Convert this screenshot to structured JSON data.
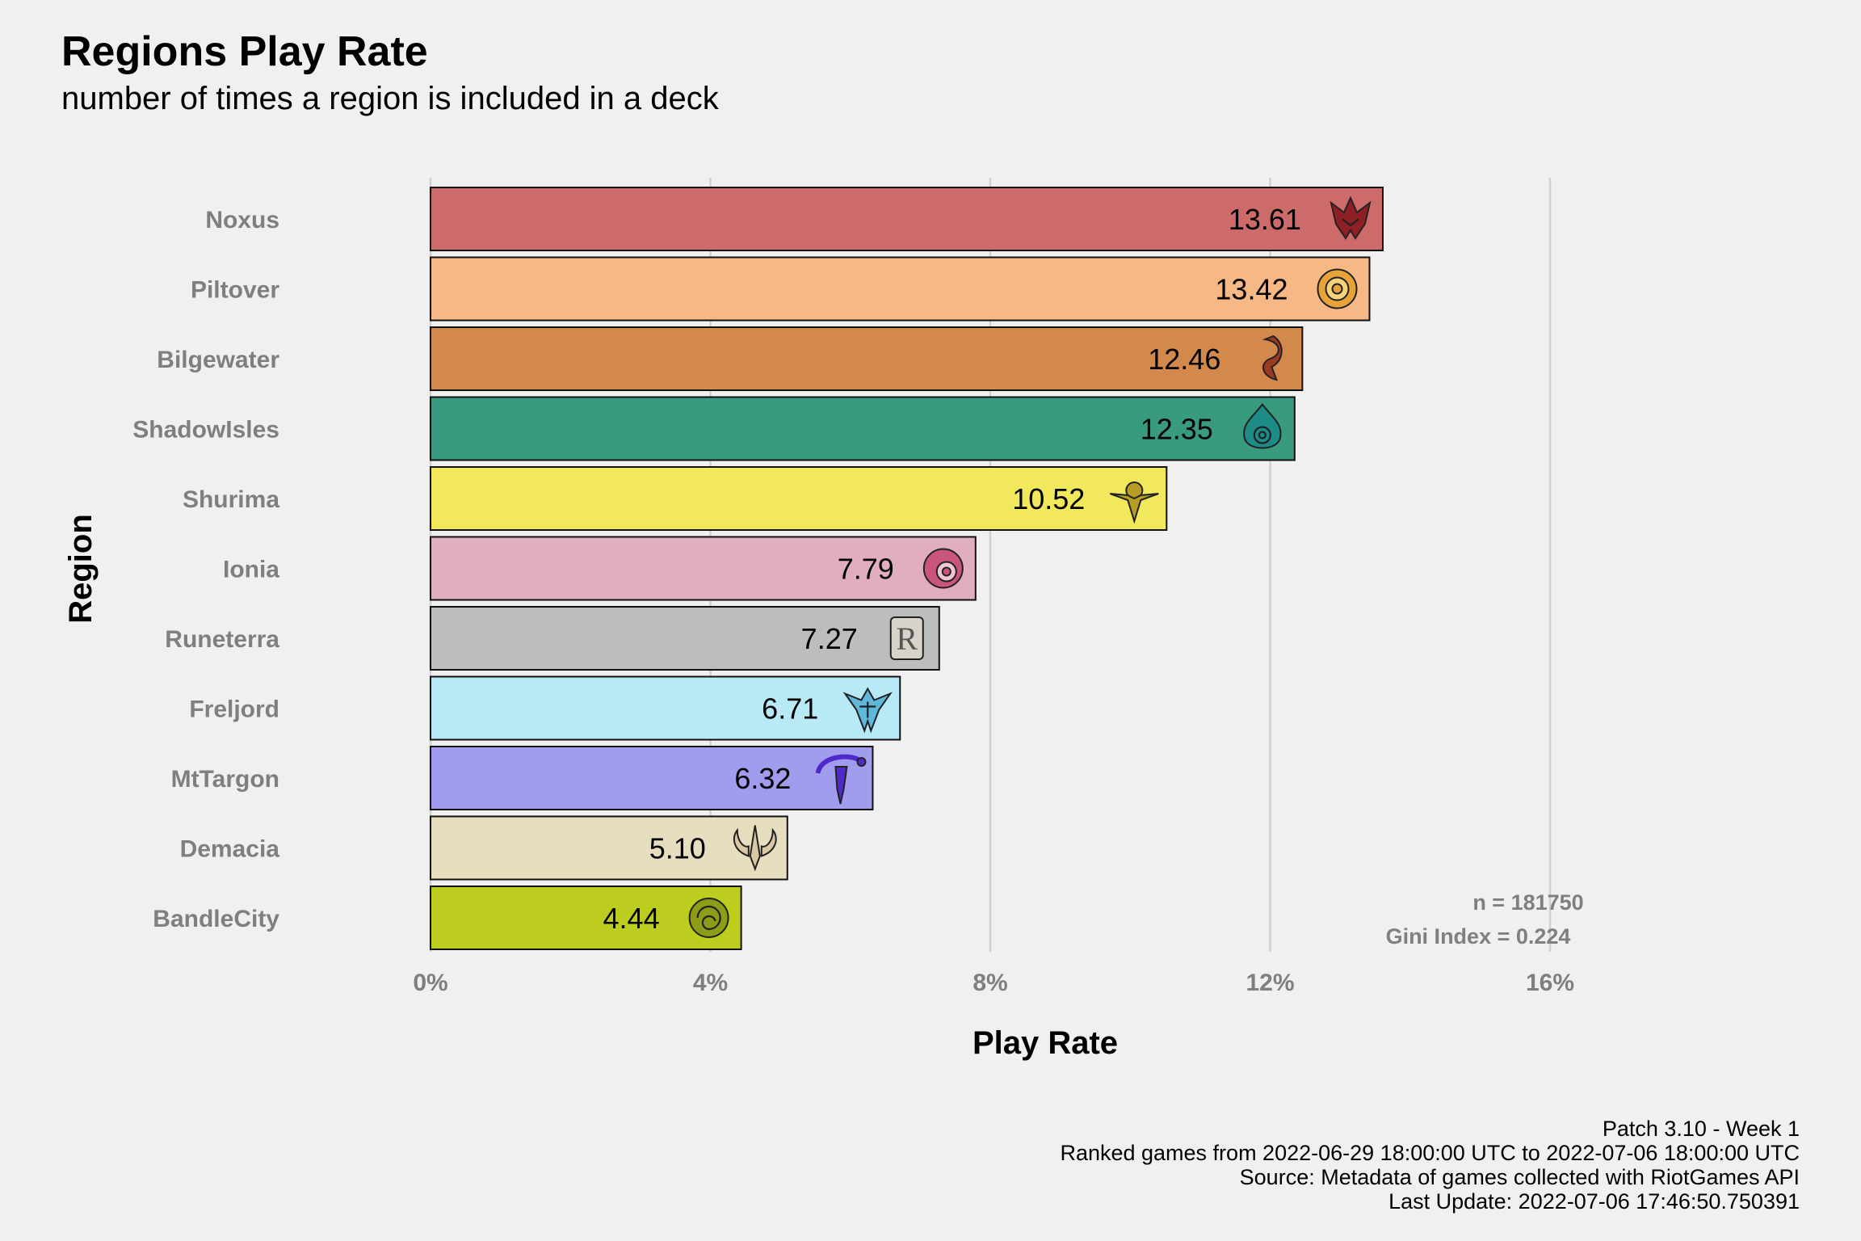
{
  "header": {
    "title": "Regions Play Rate",
    "subtitle": "number of times a region is included in a deck"
  },
  "chart_data": {
    "type": "bar",
    "orientation": "horizontal",
    "title": "Regions Play Rate",
    "subtitle": "number of times a region is included in a deck",
    "xlabel": "Play Rate",
    "ylabel": "Region",
    "xlim": [
      0,
      16
    ],
    "x_ticks": [
      0,
      4,
      8,
      12,
      16
    ],
    "x_tick_labels": [
      "0%",
      "4%",
      "8%",
      "12%",
      "16%"
    ],
    "grid": "vertical major gridlines",
    "categories": [
      "Noxus",
      "Piltover",
      "Bilgewater",
      "ShadowIsles",
      "Shurima",
      "Ionia",
      "Runeterra",
      "Freljord",
      "MtTargon",
      "Demacia",
      "BandleCity"
    ],
    "values": [
      13.61,
      13.42,
      12.46,
      12.35,
      10.52,
      7.79,
      7.27,
      6.71,
      6.32,
      5.1,
      4.44
    ],
    "value_labels": [
      "13.61",
      "13.42",
      "12.46",
      "12.35",
      "10.52",
      "7.79",
      "7.27",
      "6.71",
      "6.32",
      "5.10",
      "4.44"
    ],
    "colors": [
      "#cd6b6b",
      "#f6b985",
      "#d3884c",
      "#389b7f",
      "#f2e85b",
      "#e1aebd",
      "#bdbdbd",
      "#b7eaf6",
      "#a29cef",
      "#e7ddbf",
      "#bccd1f"
    ],
    "icons": [
      "noxus-icon",
      "piltover-icon",
      "bilgewater-icon",
      "shadowisles-icon",
      "shurima-icon",
      "ionia-icon",
      "runeterra-icon",
      "freljord-icon",
      "mttargon-icon",
      "demacia-icon",
      "bandlecity-icon"
    ],
    "icon_colors": [
      "#8e1f24",
      "#e8a23a",
      "#9a3b22",
      "#1e8c86",
      "#b79c25",
      "#c9557a",
      "#d8d4cc",
      "#5fb7d9",
      "#4e2bc9",
      "#d8c8a4",
      "#8d9d18"
    ],
    "annotations": [
      "n = 181750",
      "Gini Index = 0.224"
    ]
  },
  "caption": {
    "line1": "Patch 3.10 - Week 1",
    "line2": "Ranked games from 2022-06-29 18:00:00 UTC to 2022-07-06 18:00:00 UTC",
    "line3": "Source: Metadata of games collected with RiotGames API",
    "line4": "Last Update: 2022-07-06 17:46:50.750391"
  }
}
